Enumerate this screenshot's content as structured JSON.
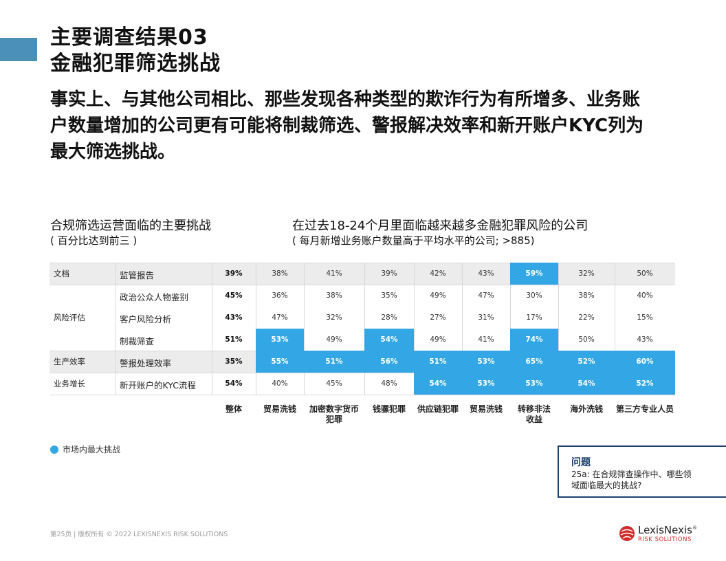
{
  "title": {
    "line1": "主要调查结果03",
    "line2": "金融犯罪筛选挑战"
  },
  "lead": "事实上、与其他公司相比、那些发现各种类型的欺诈行为有所增多、业务账户数量增加的公司更有可能将制裁筛选、警报解决效率和新开账户KYC列为最大筛选挑战。",
  "left_section": {
    "title": "合规筛选运营面临的主要挑战",
    "subtitle": "( 百分比达到前三 )"
  },
  "right_section": {
    "title": "在过去18-24个月里面临越来越多金融犯罪风险的公司",
    "subtitle": "( 每月新增业务账户数量高于平均水平的公司; >885)"
  },
  "table": {
    "categories": [
      "文档",
      "风险评估",
      "生产效率",
      "业务增长"
    ],
    "rows": [
      {
        "item": "监管报告",
        "values": [
          "39%",
          "38%",
          "41%",
          "39%",
          "42%",
          "43%",
          "59%",
          "32%",
          "50%"
        ],
        "highlight": [
          false,
          false,
          false,
          false,
          false,
          false,
          true,
          false,
          false
        ]
      },
      {
        "item": "政治公众人物鉴别",
        "values": [
          "45%",
          "36%",
          "38%",
          "35%",
          "49%",
          "47%",
          "30%",
          "38%",
          "40%"
        ],
        "highlight": [
          false,
          false,
          false,
          false,
          false,
          false,
          false,
          false,
          false
        ]
      },
      {
        "item": "客户风险分析",
        "values": [
          "43%",
          "47%",
          "32%",
          "28%",
          "27%",
          "31%",
          "17%",
          "22%",
          "15%"
        ],
        "highlight": [
          false,
          false,
          false,
          false,
          false,
          false,
          false,
          false,
          false
        ]
      },
      {
        "item": "制裁筛查",
        "values": [
          "51%",
          "53%",
          "49%",
          "54%",
          "49%",
          "41%",
          "74%",
          "50%",
          "43%"
        ],
        "highlight": [
          false,
          true,
          false,
          true,
          false,
          false,
          true,
          false,
          false
        ]
      },
      {
        "item": "警报处理效率",
        "values": [
          "35%",
          "55%",
          "51%",
          "56%",
          "51%",
          "53%",
          "65%",
          "52%",
          "60%"
        ],
        "highlight": [
          false,
          true,
          true,
          true,
          true,
          true,
          true,
          true,
          true
        ]
      },
      {
        "item": "新开账户的KYC流程",
        "values": [
          "54%",
          "40%",
          "45%",
          "48%",
          "54%",
          "53%",
          "53%",
          "54%",
          "52%"
        ],
        "highlight": [
          false,
          false,
          false,
          false,
          true,
          true,
          true,
          true,
          true
        ]
      }
    ],
    "columns": [
      {
        "line1": "整体",
        "line2": ""
      },
      {
        "line1": "贸易洗钱",
        "line2": ""
      },
      {
        "line1": "加密数字货币",
        "line2": "犯罪"
      },
      {
        "line1": "钱骡犯罪",
        "line2": ""
      },
      {
        "line1": "供应链犯罪",
        "line2": ""
      },
      {
        "line1": "贸易洗钱",
        "line2": ""
      },
      {
        "line1": "转移非法",
        "line2": "收益"
      },
      {
        "line1": "海外洗钱",
        "line2": ""
      },
      {
        "line1": "第三方专业人员",
        "line2": ""
      }
    ],
    "highlight_color": "#33a7e6"
  },
  "legend": {
    "label": "市场内最大挑战"
  },
  "question": {
    "title": "问题",
    "text": "25a: 在合规筛查操作中、哪些领域面临最大的挑战?"
  },
  "footer": {
    "page": "第25页 |",
    "copyright": "版权所有 © 2022 LEXISNEXIS RISK SOLUTIONS"
  },
  "logo": {
    "name": "LexisNexis",
    "registered": "®",
    "sub": "RISK SOLUTIONS"
  }
}
